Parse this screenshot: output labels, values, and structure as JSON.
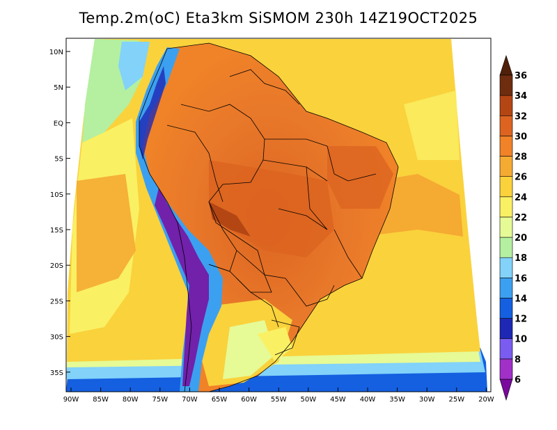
{
  "title": "Temp.2m(oC) Eta3km SiSMOM 230h 14Z19OCT2025",
  "lat_ticks": [
    "10N",
    "5N",
    "EQ",
    "5S",
    "10S",
    "15S",
    "20S",
    "25S",
    "30S",
    "35S"
  ],
  "lon_ticks": [
    "90W",
    "85W",
    "80W",
    "75W",
    "70W",
    "65W",
    "60W",
    "55W",
    "50W",
    "45W",
    "40W",
    "35W",
    "30W",
    "25W",
    "20W"
  ],
  "colorbar": {
    "levels": [
      6,
      8,
      10,
      12,
      14,
      16,
      18,
      20,
      22,
      24,
      26,
      28,
      30,
      32,
      34,
      36
    ],
    "colors": [
      "#7a0a9e",
      "#a030c8",
      "#7a5cf0",
      "#1e28b4",
      "#1460e0",
      "#3ca0f0",
      "#82d2fa",
      "#b4f0a0",
      "#e6fa96",
      "#faf064",
      "#fad23c",
      "#f5aa32",
      "#f08228",
      "#dc6420",
      "#b44614",
      "#6e2d0f",
      "#50200a"
    ]
  },
  "chart_data": {
    "type": "heatmap",
    "title": "Temp.2m(oC) Eta3km SiSMOM 230h 14Z19OCT2025",
    "variable": "2 m air temperature",
    "units": "oC",
    "model": "Eta3km SiSMOM",
    "forecast_hour": "230h",
    "valid_time": "14Z19OCT2025",
    "lon_range": [
      "90W",
      "20W"
    ],
    "lat_range": [
      "38S",
      "12N"
    ],
    "contour_levels": [
      6,
      8,
      10,
      12,
      14,
      16,
      18,
      20,
      22,
      24,
      26,
      28,
      30,
      32,
      34,
      36
    ]
  }
}
